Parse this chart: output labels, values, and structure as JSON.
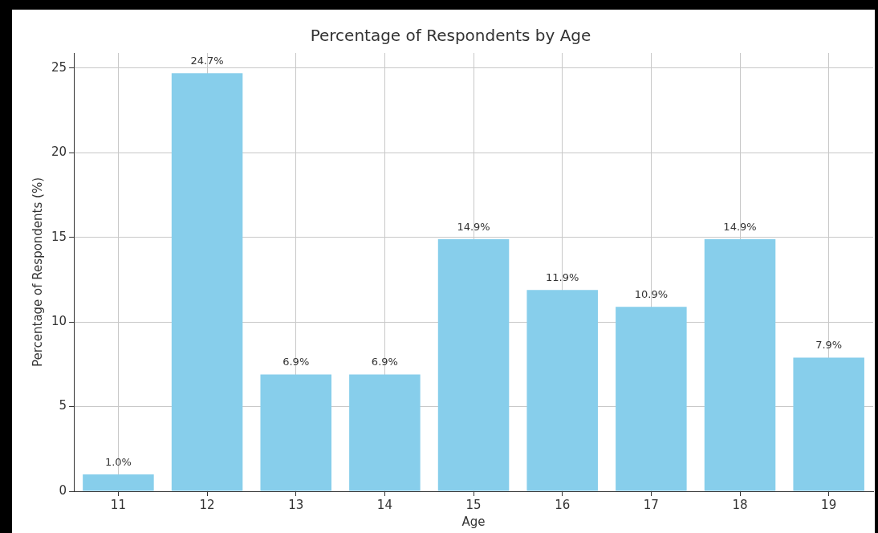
{
  "chart_data": {
    "type": "bar",
    "title": "Percentage of Respondents by Age",
    "xlabel": "Age",
    "ylabel": "Percentage of Respondents (%)",
    "categories": [
      "11",
      "12",
      "13",
      "14",
      "15",
      "16",
      "17",
      "18",
      "19"
    ],
    "values": [
      1.0,
      24.7,
      6.9,
      6.9,
      14.9,
      11.9,
      10.9,
      14.9,
      7.9
    ],
    "value_labels": [
      "1.0%",
      "24.7%",
      "6.9%",
      "6.9%",
      "14.9%",
      "11.9%",
      "10.9%",
      "14.9%",
      "7.9%"
    ],
    "color": "#87ceeb",
    "ylim": [
      0,
      25.9
    ],
    "yticks": [
      0,
      5,
      10,
      15,
      20,
      25
    ],
    "grid": true,
    "legend": false
  }
}
